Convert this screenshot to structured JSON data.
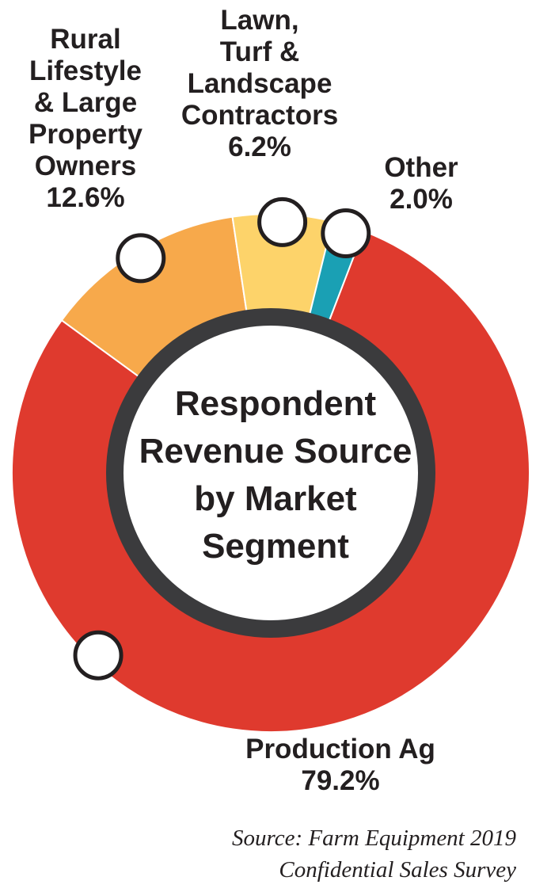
{
  "chart_data": {
    "type": "pie",
    "title": "Respondent Revenue Source by Market Segment",
    "title_lines": [
      "Respondent",
      "Revenue Source",
      "by Market",
      "Segment"
    ],
    "slices": [
      {
        "name": "Production Ag",
        "value": 79.2,
        "color": "#df3a2e",
        "label_lines": [
          "Production Ag"
        ],
        "value_label": "79.2%"
      },
      {
        "name": "Rural Lifestyle & Large Property Owners",
        "value": 12.6,
        "color": "#f7a94b",
        "label_lines": [
          "Rural",
          "Lifestyle",
          "& Large",
          "Property",
          "Owners"
        ],
        "value_label": "12.6%"
      },
      {
        "name": "Lawn, Turf & Landscape Contractors",
        "value": 6.2,
        "color": "#fdd36a",
        "label_lines": [
          "Lawn,",
          "Turf &",
          "Landscape",
          "Contractors"
        ],
        "value_label": "6.2%"
      },
      {
        "name": "Other",
        "value": 2.0,
        "color": "#1aa0b4",
        "label_lines": [
          "Other"
        ],
        "value_label": "2.0%"
      }
    ],
    "inner_ring_color": "#3b3b3d"
  },
  "source": {
    "line1": "Source: Farm Equipment 2019",
    "line2": "Confidential Sales Survey"
  }
}
